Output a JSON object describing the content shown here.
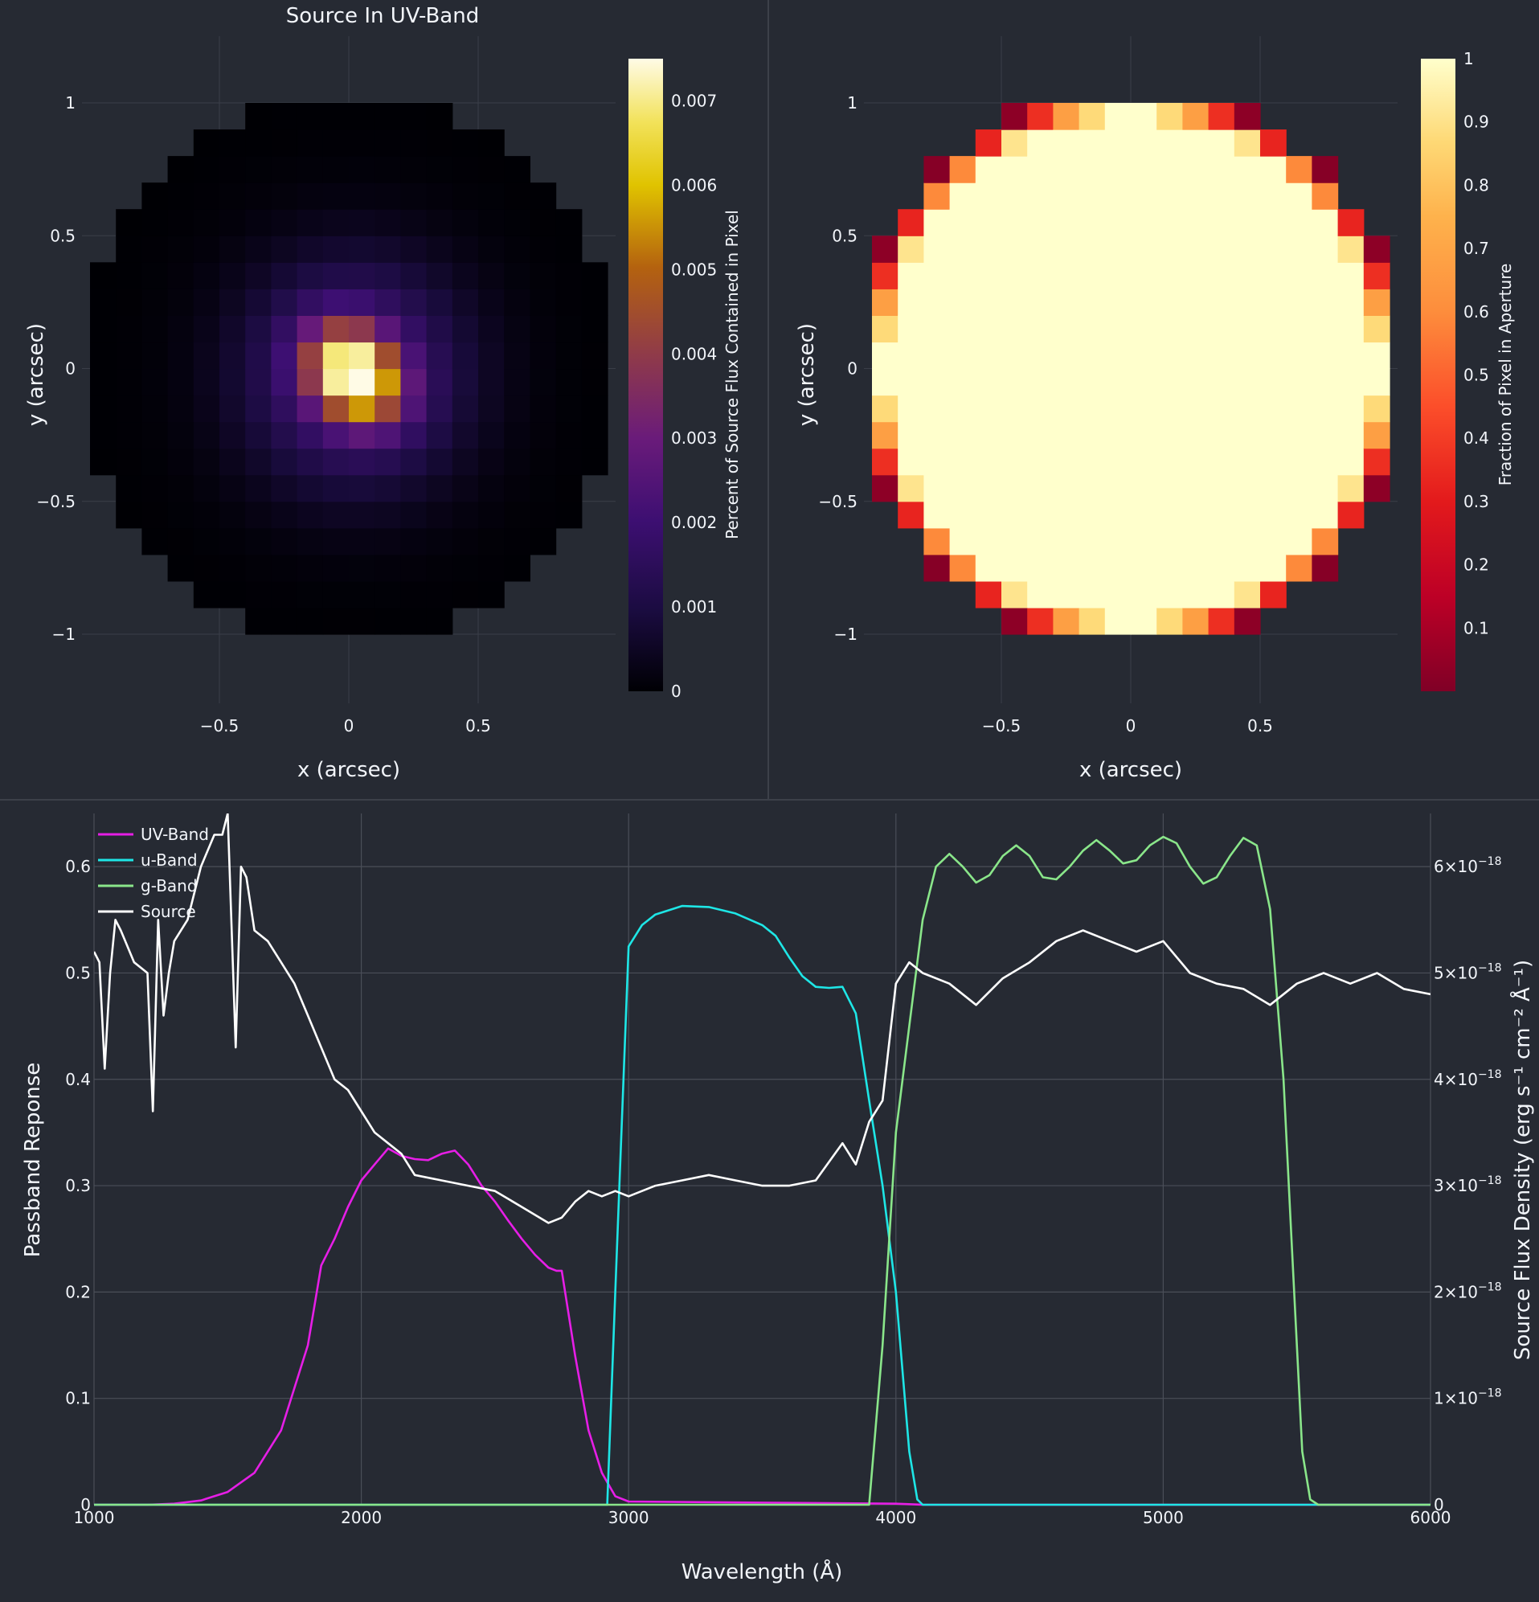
{
  "chart_data": [
    {
      "type": "heatmap",
      "title": "Source In UV-Band",
      "xlabel": "x (arcsec)",
      "ylabel": "y (arcsec)",
      "xlim": [
        -1.0,
        1.0
      ],
      "ylim": [
        -1.2,
        1.2
      ],
      "xticks": [
        "−0.5",
        "0",
        "0.5"
      ],
      "yticks": [
        "1",
        "0.5",
        "0",
        "−0.5",
        "−1"
      ],
      "colorscale": "plasma-like (black → indigo → purple → brown → gold → cream)",
      "colorbar": {
        "title": "Percent of Source Flux Contained in Pixel",
        "range": [
          0,
          0.0075
        ],
        "ticks": [
          "0.007",
          "0.006",
          "0.005",
          "0.004",
          "0.003",
          "0.002",
          "0.001",
          "0"
        ]
      },
      "pixel_size_arcsec": 0.1,
      "aperture_radius_arcsec": 1.0,
      "peak": {
        "x": 0.0,
        "y": 0.0,
        "value": 0.0075
      },
      "grid": true
    },
    {
      "type": "heatmap",
      "title": "",
      "xlabel": "x (arcsec)",
      "ylabel": "y (arcsec)",
      "xlim": [
        -1.0,
        1.0
      ],
      "ylim": [
        -1.2,
        1.2
      ],
      "xticks": [
        "−0.5",
        "0",
        "0.5"
      ],
      "yticks": [
        "1",
        "0.5",
        "0",
        "−0.5",
        "−1"
      ],
      "colorscale": "YlOrRd reversed (dark red → orange → cream)",
      "colorbar": {
        "title": "Fraction of Pixel in Aperture",
        "range": [
          0,
          1
        ],
        "ticks": [
          "1",
          "0.9",
          "0.8",
          "0.7",
          "0.6",
          "0.5",
          "0.4",
          "0.3",
          "0.2",
          "0.1"
        ]
      },
      "pixel_size_arcsec": 0.1,
      "aperture_radius_arcsec": 1.0,
      "grid": true
    },
    {
      "type": "line",
      "title": "",
      "xlabel": "Wavelength (Å)",
      "ylabel": "Passband Reponse",
      "y2label": "Source Flux Density (erg s⁻¹ cm⁻² Å⁻¹)",
      "xlim": [
        1000,
        6000
      ],
      "ylim": [
        0,
        0.65
      ],
      "y2lim": [
        0,
        6.5e-18
      ],
      "xticks": [
        "1000",
        "2000",
        "3000",
        "4000",
        "5000",
        "6000"
      ],
      "yticks": [
        "0",
        "0.1",
        "0.2",
        "0.3",
        "0.4",
        "0.5",
        "0.6"
      ],
      "y2ticks": [
        {
          "coef": "0",
          "exp": ""
        },
        {
          "coef": "1×10",
          "exp": "−18"
        },
        {
          "coef": "2×10",
          "exp": "−18"
        },
        {
          "coef": "3×10",
          "exp": "−18"
        },
        {
          "coef": "4×10",
          "exp": "−18"
        },
        {
          "coef": "5×10",
          "exp": "−18"
        },
        {
          "coef": "6×10",
          "exp": "−18"
        }
      ],
      "legend_position": "top-left",
      "grid": true,
      "series": [
        {
          "name": "UV-Band",
          "color": "#e61ee6",
          "axis": "left",
          "x": [
            1000,
            1200,
            1300,
            1400,
            1500,
            1600,
            1700,
            1800,
            1850,
            1900,
            1950,
            2000,
            2050,
            2100,
            2150,
            2200,
            2250,
            2300,
            2350,
            2400,
            2450,
            2500,
            2550,
            2600,
            2650,
            2700,
            2730,
            2750,
            2800,
            2850,
            2900,
            2950,
            3000,
            3500,
            4000,
            4100,
            6000
          ],
          "y": [
            0,
            0,
            0.001,
            0.004,
            0.012,
            0.03,
            0.07,
            0.15,
            0.225,
            0.25,
            0.28,
            0.305,
            0.32,
            0.335,
            0.328,
            0.325,
            0.324,
            0.33,
            0.333,
            0.32,
            0.3,
            0.285,
            0.267,
            0.25,
            0.235,
            0.223,
            0.22,
            0.22,
            0.14,
            0.07,
            0.03,
            0.008,
            0.003,
            0.002,
            0.001,
            0,
            0
          ]
        },
        {
          "name": "u-Band",
          "color": "#1ee6e6",
          "axis": "left",
          "x": [
            1000,
            2920,
            2950,
            3000,
            3050,
            3100,
            3200,
            3300,
            3400,
            3500,
            3550,
            3600,
            3650,
            3700,
            3750,
            3800,
            3850,
            3900,
            3950,
            4000,
            4050,
            4080,
            4100,
            6000
          ],
          "y": [
            0,
            0,
            0.2,
            0.525,
            0.545,
            0.555,
            0.563,
            0.562,
            0.556,
            0.545,
            0.535,
            0.515,
            0.497,
            0.487,
            0.486,
            0.487,
            0.462,
            0.38,
            0.3,
            0.2,
            0.05,
            0.005,
            0,
            0
          ]
        },
        {
          "name": "g-Band",
          "color": "#8ae68a",
          "axis": "left",
          "x": [
            1000,
            3900,
            3950,
            4000,
            4050,
            4100,
            4150,
            4200,
            4250,
            4300,
            4350,
            4400,
            4450,
            4500,
            4550,
            4600,
            4650,
            4700,
            4750,
            4800,
            4850,
            4900,
            4950,
            5000,
            5050,
            5100,
            5150,
            5200,
            5250,
            5300,
            5350,
            5400,
            5450,
            5480,
            5500,
            5520,
            5550,
            5580,
            5600,
            6000
          ],
          "y": [
            0,
            0,
            0.15,
            0.35,
            0.45,
            0.55,
            0.6,
            0.612,
            0.6,
            0.585,
            0.592,
            0.61,
            0.62,
            0.61,
            0.59,
            0.588,
            0.6,
            0.615,
            0.625,
            0.615,
            0.603,
            0.606,
            0.62,
            0.628,
            0.622,
            0.6,
            0.584,
            0.59,
            0.61,
            0.627,
            0.62,
            0.56,
            0.4,
            0.25,
            0.15,
            0.05,
            0.005,
            0,
            0,
            0
          ]
        },
        {
          "name": "Source",
          "color": "#ffffff",
          "axis": "right",
          "x": [
            1000,
            1020,
            1040,
            1060,
            1080,
            1100,
            1150,
            1200,
            1220,
            1240,
            1260,
            1280,
            1300,
            1350,
            1400,
            1450,
            1480,
            1500,
            1530,
            1550,
            1570,
            1600,
            1650,
            1700,
            1750,
            1800,
            1850,
            1900,
            1950,
            2000,
            2050,
            2100,
            2150,
            2200,
            2300,
            2400,
            2500,
            2600,
            2700,
            2750,
            2800,
            2850,
            2900,
            2950,
            3000,
            3100,
            3200,
            3300,
            3400,
            3500,
            3600,
            3700,
            3800,
            3850,
            3900,
            3950,
            4000,
            4050,
            4100,
            4200,
            4300,
            4400,
            4500,
            4600,
            4700,
            4800,
            4900,
            5000,
            5100,
            5200,
            5300,
            5400,
            5500,
            5600,
            5700,
            5800,
            5900,
            6000
          ],
          "y": [
            5.2,
            5.1,
            4.1,
            5.0,
            5.5,
            5.4,
            5.1,
            5.0,
            3.7,
            5.5,
            4.6,
            5.0,
            5.3,
            5.5,
            6.0,
            6.3,
            6.3,
            6.5,
            4.3,
            6.0,
            5.9,
            5.4,
            5.3,
            5.1,
            4.9,
            4.6,
            4.3,
            4.0,
            3.9,
            3.7,
            3.5,
            3.4,
            3.3,
            3.1,
            3.05,
            3.0,
            2.95,
            2.8,
            2.65,
            2.7,
            2.85,
            2.95,
            2.9,
            2.95,
            2.9,
            3.0,
            3.05,
            3.1,
            3.05,
            3.0,
            3.0,
            3.05,
            3.4,
            3.2,
            3.6,
            3.8,
            4.9,
            5.1,
            5.0,
            4.9,
            4.7,
            4.95,
            5.1,
            5.3,
            5.4,
            5.3,
            5.2,
            5.3,
            5.0,
            4.9,
            4.85,
            4.7,
            4.9,
            5.0,
            4.9,
            5.0,
            4.85,
            4.8
          ]
        }
      ]
    }
  ]
}
